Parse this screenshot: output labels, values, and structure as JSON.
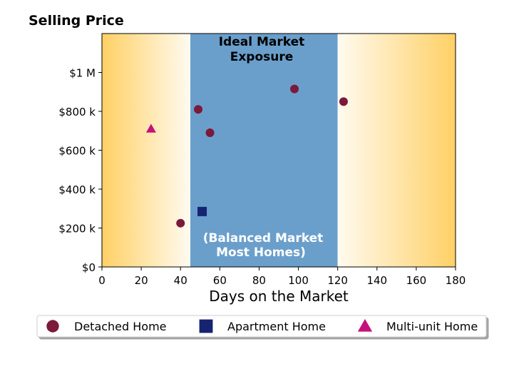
{
  "chart_data": {
    "type": "scatter",
    "title": "Selling Price",
    "xlabel": "Days on the Market",
    "ylabel": "",
    "xlim": [
      0,
      180
    ],
    "ylim": [
      0,
      1200000
    ],
    "x_ticks": [
      0,
      20,
      40,
      60,
      80,
      100,
      120,
      140,
      160,
      180
    ],
    "y_ticks": [
      {
        "value": 0,
        "label": "$0"
      },
      {
        "value": 200000,
        "label": "$200 k"
      },
      {
        "value": 400000,
        "label": "$400 k"
      },
      {
        "value": 600000,
        "label": "$600 k"
      },
      {
        "value": 800000,
        "label": "$800 k"
      },
      {
        "value": 1000000,
        "label": "$1 M"
      }
    ],
    "grid": false,
    "zones": {
      "ideal": {
        "x_range": [
          45,
          120
        ],
        "color": "#6a9fcc",
        "top_label": [
          "Ideal Market",
          "Exposure"
        ],
        "bottom_label": [
          "(Balanced Market",
          "Most Homes)"
        ]
      },
      "gradient_colors": [
        "#ffd065",
        "#fffbf0"
      ]
    },
    "series": [
      {
        "name": "Detached Home",
        "marker": "circle",
        "color": "#7b1a3a",
        "points": [
          {
            "x": 40,
            "y": 225000
          },
          {
            "x": 49,
            "y": 810000
          },
          {
            "x": 55,
            "y": 690000
          },
          {
            "x": 98,
            "y": 915000
          },
          {
            "x": 123,
            "y": 850000
          }
        ]
      },
      {
        "name": "Apartment Home",
        "marker": "square",
        "color": "#152371",
        "points": [
          {
            "x": 51,
            "y": 285000
          }
        ]
      },
      {
        "name": "Multi-unit Home",
        "marker": "triangle",
        "color": "#c4127a",
        "points": [
          {
            "x": 25,
            "y": 710000
          }
        ]
      }
    ],
    "legend_position": "bottom"
  }
}
